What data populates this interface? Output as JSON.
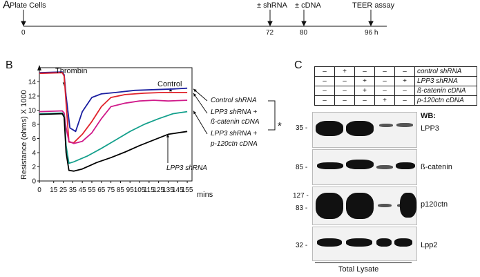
{
  "panel_a": {
    "letter": "A",
    "events": [
      {
        "label": "Plate Cells",
        "tick": "0"
      },
      {
        "label": "± shRNA",
        "tick": "72"
      },
      {
        "label": "± cDNA",
        "tick": "80"
      },
      {
        "label": "TEER assay",
        "tick": "96 h"
      }
    ]
  },
  "panel_b": {
    "letter": "B",
    "ylabel": "Resistance (ohms) X 1000",
    "xunit": "mins",
    "thrombin_label": "Thrombin",
    "control_annotation": "Control",
    "knockdown_annotation": "LPP3 shRNA",
    "legend": [
      {
        "text": "Control shRNA",
        "color": "#1b1fa0"
      },
      {
        "text": "LPP3 shRNA +",
        "text2": "ß-catenin cDNA",
        "color": "#e0222a"
      },
      {
        "text": "LPP3 shRNA +",
        "text2": "p-120ctn cDNA",
        "color": "#14a08c"
      }
    ],
    "significance": "*"
  },
  "chart_data": {
    "type": "line",
    "xlabel": "mins",
    "ylabel": "Resistance (ohms) X 1000",
    "xlim": [
      0,
      160
    ],
    "ylim": [
      0,
      16
    ],
    "xticks": [
      0,
      15,
      25,
      35,
      45,
      55,
      65,
      75,
      85,
      95,
      105,
      115,
      125,
      135,
      145,
      155
    ],
    "yticks": [
      0,
      2,
      4,
      6,
      8,
      10,
      12,
      14
    ],
    "annotations": [
      "Thrombin",
      "Control",
      "LPP3 shRNA"
    ],
    "series": [
      {
        "name": "Control shRNA",
        "color": "#1b1fa0",
        "x": [
          0,
          24,
          26,
          28,
          32,
          38,
          45,
          55,
          65,
          80,
          100,
          120,
          140,
          155
        ],
        "y": [
          15.3,
          15.4,
          15.0,
          12.0,
          7.5,
          7.0,
          9.8,
          11.8,
          12.3,
          12.5,
          12.8,
          12.9,
          13.0,
          13.1
        ]
      },
      {
        "name": "LPP3 shRNA + ß-catenin cDNA",
        "color": "#e0222a",
        "x": [
          0,
          24,
          26,
          28,
          31,
          36,
          45,
          55,
          65,
          75,
          90,
          110,
          130,
          155
        ],
        "y": [
          15.2,
          15.3,
          14.8,
          11.0,
          5.5,
          5.4,
          6.6,
          8.4,
          10.5,
          11.8,
          12.2,
          12.4,
          12.5,
          12.5
        ]
      },
      {
        "name": "LPP3 shRNA + p-120ctn cDNA",
        "color": "#d01a8a",
        "x": [
          0,
          24,
          26,
          28,
          31,
          36,
          45,
          55,
          65,
          75,
          90,
          105,
          120,
          135,
          155
        ],
        "y": [
          9.8,
          9.9,
          9.6,
          7.5,
          5.6,
          5.3,
          5.6,
          6.8,
          8.8,
          10.5,
          11.0,
          11.3,
          11.4,
          11.3,
          11.4
        ]
      },
      {
        "name": "LPP3 shRNA + p-120ctn cDNA (teal)",
        "color": "#14a08c",
        "x": [
          0,
          24,
          26,
          28,
          31,
          36,
          50,
          65,
          80,
          95,
          110,
          125,
          140,
          155
        ],
        "y": [
          9.5,
          9.6,
          9.2,
          5.0,
          2.5,
          2.7,
          3.5,
          4.6,
          5.8,
          7.0,
          8.0,
          8.8,
          9.5,
          9.8
        ]
      },
      {
        "name": "LPP3 shRNA",
        "color": "#000000",
        "x": [
          0,
          24,
          26,
          28,
          31,
          36,
          45,
          60,
          75,
          90,
          105,
          120,
          135,
          150,
          155
        ],
        "y": [
          9.4,
          9.5,
          9.0,
          4.0,
          1.5,
          1.4,
          1.7,
          2.6,
          3.3,
          4.1,
          5.0,
          5.8,
          6.6,
          6.9,
          7.0
        ]
      }
    ]
  },
  "panel_c": {
    "letter": "C",
    "conditions": [
      {
        "label": "control shRNA",
        "values": [
          "–",
          "+",
          "–",
          "–",
          "–"
        ]
      },
      {
        "label": "LPP3 shRNA",
        "values": [
          "–",
          "–",
          "+",
          "–",
          "+"
        ]
      },
      {
        "label": "ß-catenin cDNA",
        "values": [
          "–",
          "–",
          "+",
          "–",
          "–"
        ]
      },
      {
        "label": "p-120ctn cDNA",
        "values": [
          "–",
          "–",
          "–",
          "+",
          "–"
        ]
      }
    ],
    "wb_label": "WB:",
    "blots": [
      {
        "name": "LPP3",
        "markers": [
          "35 -"
        ]
      },
      {
        "name": "ß-catenin",
        "markers": [
          "85 -"
        ]
      },
      {
        "name": "p120ctn",
        "markers": [
          "127 -",
          "83 -"
        ]
      },
      {
        "name": "Lpp2",
        "markers": [
          "32 -"
        ]
      }
    ],
    "footer": "Total Lysate"
  }
}
